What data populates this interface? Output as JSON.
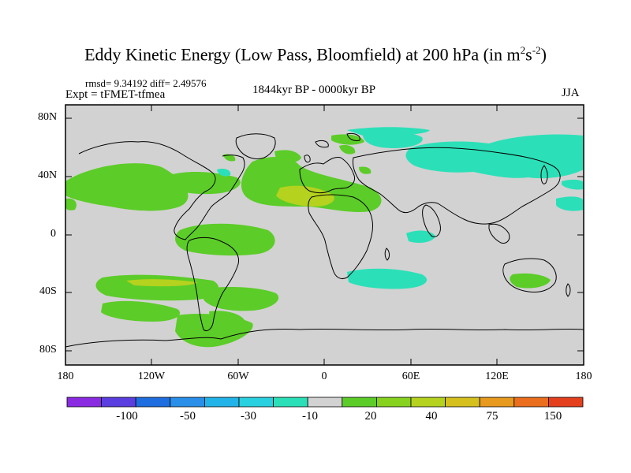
{
  "title": "Eddy Kinetic Energy (Low Pass, Bloomfield) at 200 hPa (in m",
  "title_sup1": "2",
  "title_mid": "s",
  "title_sup2": "-2",
  "title_end": ")",
  "stats_line": "rmsd= 9.34192 diff= 2.49576",
  "experiment": "Expt = tFMET-tfmea",
  "period": "1844kyr BP - 0000kyr BP",
  "season": "JJA",
  "lat_labels": [
    "80N",
    "40N",
    "0",
    "40S",
    "80S"
  ],
  "lon_labels": [
    "180",
    "120W",
    "60W",
    "0",
    "60E",
    "120E",
    "180"
  ],
  "colorbar": {
    "colors": [
      "#8a2be2",
      "#5a3ee0",
      "#1e6ee0",
      "#2a8fe8",
      "#22b4e8",
      "#28d0e0",
      "#2be0b8",
      "#d2d2d2",
      "#5ccc28",
      "#86d21e",
      "#b4d21e",
      "#d6c01e",
      "#e89a1e",
      "#ea6e1e",
      "#e4401e"
    ],
    "labels": [
      "-100",
      "-50",
      "-30",
      "-10",
      "20",
      "40",
      "75",
      "150"
    ]
  },
  "colors": {
    "background": "#d2d2d2",
    "positive_low": "#5ccc28",
    "positive_mid": "#b4d21e",
    "negative_low": "#2be0b8",
    "coastline": "#000000"
  }
}
